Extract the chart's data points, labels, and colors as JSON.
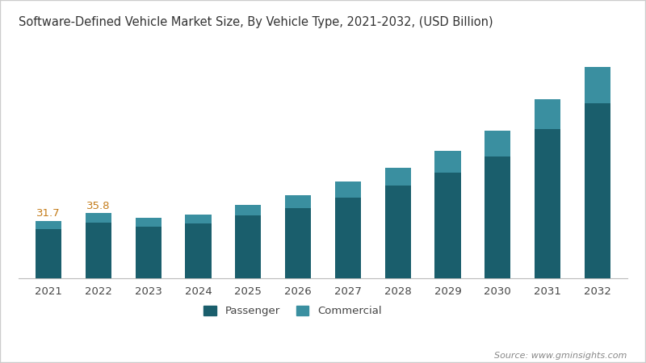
{
  "title": "Software-Defined Vehicle Market Size, By Vehicle Type, 2021-2032, (USD Billion)",
  "years": [
    2021,
    2022,
    2023,
    2024,
    2025,
    2026,
    2027,
    2028,
    2029,
    2030,
    2031,
    2032
  ],
  "passenger": [
    27.0,
    30.5,
    28.5,
    30.0,
    34.5,
    38.5,
    44.5,
    51.0,
    58.0,
    67.0,
    82.0,
    96.0
  ],
  "commercial": [
    4.7,
    5.3,
    4.8,
    5.2,
    6.0,
    7.0,
    8.5,
    9.5,
    12.0,
    14.0,
    16.0,
    20.0
  ],
  "labels_2021": "31.7",
  "labels_2022": "35.8",
  "passenger_color": "#1a5e6c",
  "commercial_color": "#3a8fa0",
  "bar_width": 0.52,
  "bg_color": "#ffffff",
  "legend_passenger": "Passenger",
  "legend_commercial": "Commercial",
  "source_text": "Source: www.gminsights.com",
  "title_color": "#333333",
  "annotation_color": "#c47c1a",
  "ylim_max": 130
}
